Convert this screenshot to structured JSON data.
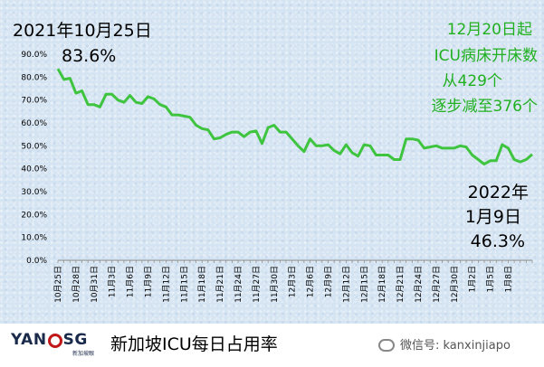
{
  "chart_data": {
    "type": "line",
    "title": "新加坡ICU每日占用率",
    "ylim": [
      0,
      90
    ],
    "y_ticks": [
      "0.0%",
      "10.0%",
      "20.0%",
      "30.0%",
      "40.0%",
      "50.0%",
      "60.0%",
      "70.0%",
      "80.0%",
      "90.0%"
    ],
    "x_ticks": [
      "10月25日",
      "10月28日",
      "10月31日",
      "11月3日",
      "11月6日",
      "11月9日",
      "11月12日",
      "11月15日",
      "11月18日",
      "11月21日",
      "11月24日",
      "11月27日",
      "11月30日",
      "12月3日",
      "12月6日",
      "12月9日",
      "12月12日",
      "12月15日",
      "12月18日",
      "12月21日",
      "12月24日",
      "12月27日",
      "12月30日",
      "1月2日",
      "1月5日",
      "1月8日"
    ],
    "series": [
      {
        "color": "#3ec43e",
        "values": [
          83.6,
          79,
          79.5,
          73,
          74,
          68,
          68,
          67,
          72.5,
          72.5,
          70,
          69,
          72,
          69,
          68.5,
          71.5,
          70.5,
          68,
          67,
          63.5,
          63.5,
          63,
          62.5,
          59,
          57.5,
          57,
          53,
          53.5,
          55,
          56,
          56,
          54,
          56,
          56.5,
          51,
          58,
          59,
          56,
          56,
          53,
          50,
          47.5,
          53,
          50,
          50,
          50.5,
          48,
          46.5,
          50.5,
          47,
          45.5,
          50.5,
          50,
          46,
          46,
          46,
          44,
          44,
          53,
          53,
          52.5,
          49,
          49.5,
          50,
          49,
          49,
          49,
          50,
          49.5,
          46,
          44,
          42,
          43.5,
          43.5,
          50.5,
          49,
          44,
          43,
          44,
          46.3
        ]
      }
    ],
    "annotations": {
      "start_date": "2021年10月25日",
      "start_value": "83.6%",
      "icu_note": [
        "12月20日起",
        "ICU病床开床数",
        "从429个",
        "逐步减至376个"
      ],
      "end_year": "2022年",
      "end_date": "1月9日",
      "end_value": "46.3%"
    }
  },
  "footer": {
    "logo_text": "YANSG",
    "logo_sub": "新加坡眼",
    "title": "新加坡ICU每日占用率",
    "wechat": "微信号: kanxinjiapo"
  }
}
